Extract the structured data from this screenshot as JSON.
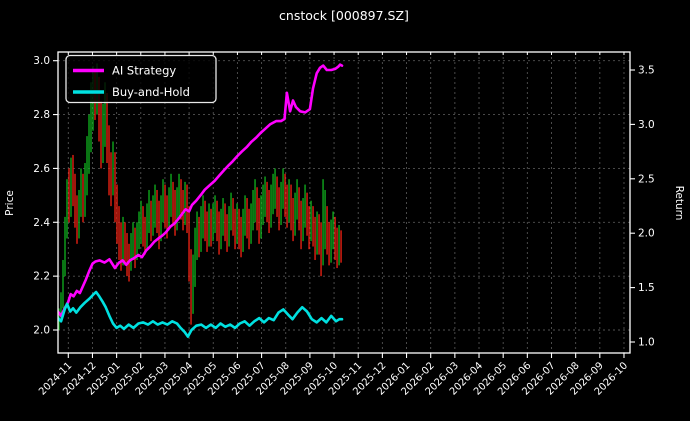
{
  "title": "cnstock [000897.SZ]",
  "legend": [
    {
      "label": "AI Strategy",
      "color": "#ff00ff"
    },
    {
      "label": "Buy-and-Hold",
      "color": "#00e0e0"
    }
  ],
  "chart_data": {
    "type": "candlestick+line",
    "title": "cnstock [000897.SZ]",
    "grid": "on",
    "legend_position": "upper-left",
    "x_axis": {
      "unit": "months since 2024-11",
      "tick_labels": [
        "2024-11",
        "2024-12",
        "2025-01",
        "2025-02",
        "2025-03",
        "2025-04",
        "2025-05",
        "2025-06",
        "2025-07",
        "2025-08",
        "2025-09",
        "2025-10",
        "2025-11",
        "2025-12",
        "2026-01",
        "2026-02",
        "2026-03",
        "2026-04",
        "2026-05",
        "2026-06",
        "2026-07",
        "2026-08",
        "2026-09",
        "2026-10"
      ]
    },
    "left_axis": {
      "label": "Price",
      "ticks": [
        2.0,
        2.2,
        2.4,
        2.6,
        2.8,
        3.0
      ],
      "range": [
        1.915,
        3.032
      ]
    },
    "right_axis": {
      "label": "Return",
      "ticks": [
        1.0,
        1.5,
        2.0,
        2.5,
        3.0,
        3.5
      ],
      "range": [
        0.899,
        3.665
      ]
    },
    "colors": {
      "up": "#10b41e",
      "down": "#f52314",
      "ai_strategy": "#ff00ff",
      "buy_and_hold": "#00e0e0",
      "grid": "#525252",
      "frame": "#ffffff"
    },
    "series": [
      {
        "name": "AI Strategy",
        "axis": "return",
        "color": "#ff00ff",
        "points": [
          [
            -0.43,
            1.28
          ],
          [
            -0.3,
            1.24
          ],
          [
            -0.15,
            1.31
          ],
          [
            0.0,
            1.37
          ],
          [
            0.1,
            1.44
          ],
          [
            0.22,
            1.42
          ],
          [
            0.35,
            1.47
          ],
          [
            0.48,
            1.45
          ],
          [
            0.62,
            1.52
          ],
          [
            0.72,
            1.57
          ],
          [
            0.86,
            1.65
          ],
          [
            1.0,
            1.72
          ],
          [
            1.12,
            1.74
          ],
          [
            1.3,
            1.75
          ],
          [
            1.5,
            1.73
          ],
          [
            1.7,
            1.76
          ],
          [
            1.93,
            1.68
          ],
          [
            2.1,
            1.73
          ],
          [
            2.25,
            1.75
          ],
          [
            2.4,
            1.71
          ],
          [
            2.55,
            1.75
          ],
          [
            2.72,
            1.77
          ],
          [
            2.9,
            1.8
          ],
          [
            3.05,
            1.78
          ],
          [
            3.22,
            1.84
          ],
          [
            3.4,
            1.88
          ],
          [
            3.55,
            1.92
          ],
          [
            3.72,
            1.95
          ],
          [
            3.9,
            1.98
          ],
          [
            4.05,
            2.01
          ],
          [
            4.22,
            2.06
          ],
          [
            4.4,
            2.09
          ],
          [
            4.55,
            2.13
          ],
          [
            4.72,
            2.18
          ],
          [
            4.85,
            2.22
          ],
          [
            5.0,
            2.2
          ],
          [
            5.12,
            2.26
          ],
          [
            5.3,
            2.3
          ],
          [
            5.48,
            2.35
          ],
          [
            5.65,
            2.4
          ],
          [
            5.85,
            2.44
          ],
          [
            6.05,
            2.48
          ],
          [
            6.25,
            2.53
          ],
          [
            6.45,
            2.58
          ],
          [
            6.62,
            2.62
          ],
          [
            6.8,
            2.66
          ],
          [
            7.0,
            2.71
          ],
          [
            7.18,
            2.75
          ],
          [
            7.38,
            2.79
          ],
          [
            7.58,
            2.84
          ],
          [
            7.78,
            2.88
          ],
          [
            7.95,
            2.92
          ],
          [
            8.15,
            2.96
          ],
          [
            8.35,
            3.0
          ],
          [
            8.6,
            3.03
          ],
          [
            8.8,
            3.03
          ],
          [
            8.95,
            3.05
          ],
          [
            9.05,
            3.29
          ],
          [
            9.18,
            3.12
          ],
          [
            9.3,
            3.22
          ],
          [
            9.42,
            3.16
          ],
          [
            9.6,
            3.12
          ],
          [
            9.8,
            3.11
          ],
          [
            10.0,
            3.14
          ],
          [
            10.13,
            3.33
          ],
          [
            10.28,
            3.47
          ],
          [
            10.42,
            3.52
          ],
          [
            10.55,
            3.54
          ],
          [
            10.7,
            3.5
          ],
          [
            10.88,
            3.5
          ],
          [
            11.05,
            3.51
          ],
          [
            11.17,
            3.53
          ],
          [
            11.25,
            3.55
          ],
          [
            11.33,
            3.54
          ]
        ]
      },
      {
        "name": "Buy-and-Hold",
        "axis": "return",
        "color": "#00e0e0",
        "points": [
          [
            -0.43,
            1.22
          ],
          [
            -0.3,
            1.19
          ],
          [
            -0.15,
            1.3
          ],
          [
            -0.05,
            1.35
          ],
          [
            0.08,
            1.28
          ],
          [
            0.2,
            1.31
          ],
          [
            0.33,
            1.27
          ],
          [
            0.5,
            1.32
          ],
          [
            0.68,
            1.36
          ],
          [
            0.88,
            1.4
          ],
          [
            1.05,
            1.44
          ],
          [
            1.15,
            1.46
          ],
          [
            1.28,
            1.42
          ],
          [
            1.42,
            1.37
          ],
          [
            1.55,
            1.32
          ],
          [
            1.7,
            1.24
          ],
          [
            1.85,
            1.17
          ],
          [
            2.0,
            1.13
          ],
          [
            2.15,
            1.15
          ],
          [
            2.3,
            1.12
          ],
          [
            2.5,
            1.16
          ],
          [
            2.7,
            1.13
          ],
          [
            2.9,
            1.17
          ],
          [
            3.1,
            1.18
          ],
          [
            3.3,
            1.16
          ],
          [
            3.5,
            1.19
          ],
          [
            3.7,
            1.16
          ],
          [
            3.9,
            1.18
          ],
          [
            4.1,
            1.16
          ],
          [
            4.3,
            1.19
          ],
          [
            4.5,
            1.17
          ],
          [
            4.65,
            1.13
          ],
          [
            4.82,
            1.09
          ],
          [
            4.95,
            1.05
          ],
          [
            5.1,
            1.11
          ],
          [
            5.3,
            1.15
          ],
          [
            5.5,
            1.16
          ],
          [
            5.7,
            1.13
          ],
          [
            5.9,
            1.16
          ],
          [
            6.1,
            1.13
          ],
          [
            6.3,
            1.17
          ],
          [
            6.5,
            1.14
          ],
          [
            6.7,
            1.16
          ],
          [
            6.9,
            1.13
          ],
          [
            7.1,
            1.17
          ],
          [
            7.3,
            1.19
          ],
          [
            7.5,
            1.15
          ],
          [
            7.7,
            1.19
          ],
          [
            7.9,
            1.22
          ],
          [
            8.1,
            1.18
          ],
          [
            8.3,
            1.22
          ],
          [
            8.5,
            1.2
          ],
          [
            8.7,
            1.27
          ],
          [
            8.9,
            1.3
          ],
          [
            9.1,
            1.25
          ],
          [
            9.28,
            1.21
          ],
          [
            9.48,
            1.27
          ],
          [
            9.68,
            1.32
          ],
          [
            9.88,
            1.28
          ],
          [
            10.08,
            1.21
          ],
          [
            10.28,
            1.18
          ],
          [
            10.48,
            1.22
          ],
          [
            10.68,
            1.18
          ],
          [
            10.88,
            1.24
          ],
          [
            11.08,
            1.19
          ],
          [
            11.22,
            1.21
          ],
          [
            11.33,
            1.21
          ]
        ]
      }
    ],
    "candles": {
      "axis": "price",
      "m_start": -0.385,
      "m_step": 0.0828,
      "bars": [
        [
          2.0,
          2.08,
          1
        ],
        [
          2.04,
          2.14,
          1
        ],
        [
          2.08,
          2.26,
          1
        ],
        [
          2.2,
          2.42,
          1
        ],
        [
          2.34,
          2.56,
          1
        ],
        [
          2.4,
          2.6,
          0
        ],
        [
          2.42,
          2.64,
          1
        ],
        [
          2.46,
          2.65,
          0
        ],
        [
          2.38,
          2.58,
          0
        ],
        [
          2.32,
          2.5,
          0
        ],
        [
          2.34,
          2.52,
          1
        ],
        [
          2.42,
          2.6,
          1
        ],
        [
          2.4,
          2.58,
          0
        ],
        [
          2.42,
          2.62,
          1
        ],
        [
          2.5,
          2.72,
          1
        ],
        [
          2.58,
          2.8,
          1
        ],
        [
          2.66,
          2.92,
          1
        ],
        [
          2.74,
          2.98,
          1
        ],
        [
          2.78,
          2.97,
          0
        ],
        [
          2.8,
          2.99,
          1
        ],
        [
          2.7,
          2.94,
          0
        ],
        [
          2.6,
          2.85,
          0
        ],
        [
          2.62,
          2.84,
          1
        ],
        [
          2.68,
          2.92,
          1
        ],
        [
          2.62,
          2.88,
          0
        ],
        [
          2.5,
          2.76,
          0
        ],
        [
          2.46,
          2.66,
          0
        ],
        [
          2.5,
          2.7,
          1
        ],
        [
          2.4,
          2.66,
          0
        ],
        [
          2.32,
          2.54,
          0
        ],
        [
          2.26,
          2.46,
          0
        ],
        [
          2.22,
          2.4,
          0
        ],
        [
          2.24,
          2.42,
          1
        ],
        [
          2.24,
          2.4,
          0
        ],
        [
          2.2,
          2.36,
          0
        ],
        [
          2.18,
          2.32,
          0
        ],
        [
          2.22,
          2.36,
          1
        ],
        [
          2.26,
          2.4,
          1
        ],
        [
          2.23,
          2.38,
          0
        ],
        [
          2.26,
          2.4,
          1
        ],
        [
          2.3,
          2.44,
          1
        ],
        [
          2.32,
          2.48,
          1
        ],
        [
          2.31,
          2.46,
          0
        ],
        [
          2.28,
          2.42,
          0
        ],
        [
          2.3,
          2.47,
          1
        ],
        [
          2.36,
          2.52,
          1
        ],
        [
          2.33,
          2.48,
          0
        ],
        [
          2.35,
          2.5,
          1
        ],
        [
          2.38,
          2.54,
          1
        ],
        [
          2.36,
          2.52,
          0
        ],
        [
          2.3,
          2.48,
          0
        ],
        [
          2.33,
          2.5,
          1
        ],
        [
          2.4,
          2.56,
          1
        ],
        [
          2.38,
          2.54,
          0
        ],
        [
          2.34,
          2.5,
          0
        ],
        [
          2.37,
          2.53,
          1
        ],
        [
          2.42,
          2.58,
          1
        ],
        [
          2.39,
          2.55,
          0
        ],
        [
          2.35,
          2.52,
          0
        ],
        [
          2.37,
          2.53,
          1
        ],
        [
          2.42,
          2.58,
          1
        ],
        [
          2.41,
          2.56,
          0
        ],
        [
          2.37,
          2.52,
          0
        ],
        [
          2.39,
          2.55,
          1
        ],
        [
          2.36,
          2.54,
          0
        ],
        [
          2.18,
          2.46,
          0
        ],
        [
          2.02,
          2.3,
          0
        ],
        [
          2.06,
          2.28,
          1
        ],
        [
          2.16,
          2.38,
          1
        ],
        [
          2.26,
          2.44,
          1
        ],
        [
          2.27,
          2.42,
          0
        ],
        [
          2.29,
          2.46,
          1
        ],
        [
          2.34,
          2.5,
          1
        ],
        [
          2.33,
          2.48,
          0
        ],
        [
          2.29,
          2.44,
          0
        ],
        [
          2.31,
          2.47,
          1
        ],
        [
          2.31,
          2.45,
          0
        ],
        [
          2.33,
          2.47,
          1
        ],
        [
          2.36,
          2.5,
          1
        ],
        [
          2.33,
          2.48,
          0
        ],
        [
          2.28,
          2.44,
          0
        ],
        [
          2.3,
          2.45,
          1
        ],
        [
          2.35,
          2.49,
          1
        ],
        [
          2.33,
          2.47,
          0
        ],
        [
          2.29,
          2.43,
          0
        ],
        [
          2.31,
          2.46,
          1
        ],
        [
          2.37,
          2.51,
          1
        ],
        [
          2.35,
          2.49,
          0
        ],
        [
          2.3,
          2.45,
          0
        ],
        [
          2.32,
          2.47,
          1
        ],
        [
          2.3,
          2.45,
          0
        ],
        [
          2.27,
          2.42,
          0
        ],
        [
          2.29,
          2.45,
          1
        ],
        [
          2.35,
          2.5,
          1
        ],
        [
          2.34,
          2.49,
          0
        ],
        [
          2.3,
          2.45,
          0
        ],
        [
          2.32,
          2.47,
          1
        ],
        [
          2.37,
          2.52,
          1
        ],
        [
          2.4,
          2.56,
          1
        ],
        [
          2.37,
          2.53,
          0
        ],
        [
          2.32,
          2.49,
          0
        ],
        [
          2.34,
          2.5,
          1
        ],
        [
          2.39,
          2.54,
          1
        ],
        [
          2.42,
          2.57,
          1
        ],
        [
          2.4,
          2.55,
          0
        ],
        [
          2.36,
          2.52,
          0
        ],
        [
          2.38,
          2.54,
          1
        ],
        [
          2.43,
          2.58,
          1
        ],
        [
          2.45,
          2.6,
          1
        ],
        [
          2.42,
          2.57,
          0
        ],
        [
          2.37,
          2.53,
          0
        ],
        [
          2.39,
          2.55,
          1
        ],
        [
          2.45,
          2.6,
          1
        ],
        [
          2.42,
          2.58,
          0
        ],
        [
          2.38,
          2.54,
          0
        ],
        [
          2.4,
          2.56,
          1
        ],
        [
          2.37,
          2.54,
          0
        ],
        [
          2.33,
          2.49,
          0
        ],
        [
          2.35,
          2.51,
          1
        ],
        [
          2.41,
          2.56,
          1
        ],
        [
          2.37,
          2.53,
          0
        ],
        [
          2.3,
          2.48,
          0
        ],
        [
          2.33,
          2.49,
          1
        ],
        [
          2.38,
          2.54,
          1
        ],
        [
          2.35,
          2.51,
          0
        ],
        [
          2.3,
          2.46,
          0
        ],
        [
          2.33,
          2.48,
          1
        ],
        [
          2.31,
          2.46,
          0
        ],
        [
          2.26,
          2.42,
          0
        ],
        [
          2.28,
          2.44,
          1
        ],
        [
          2.28,
          2.43,
          0
        ],
        [
          2.2,
          2.4,
          0
        ],
        [
          2.24,
          2.56,
          1
        ],
        [
          2.3,
          2.52,
          1
        ],
        [
          2.28,
          2.46,
          0
        ],
        [
          2.24,
          2.4,
          0
        ],
        [
          2.25,
          2.41,
          1
        ],
        [
          2.3,
          2.44,
          1
        ],
        [
          2.26,
          2.42,
          0
        ],
        [
          2.23,
          2.38,
          0
        ],
        [
          2.24,
          2.39,
          1
        ],
        [
          2.25,
          2.37,
          0
        ]
      ]
    }
  }
}
